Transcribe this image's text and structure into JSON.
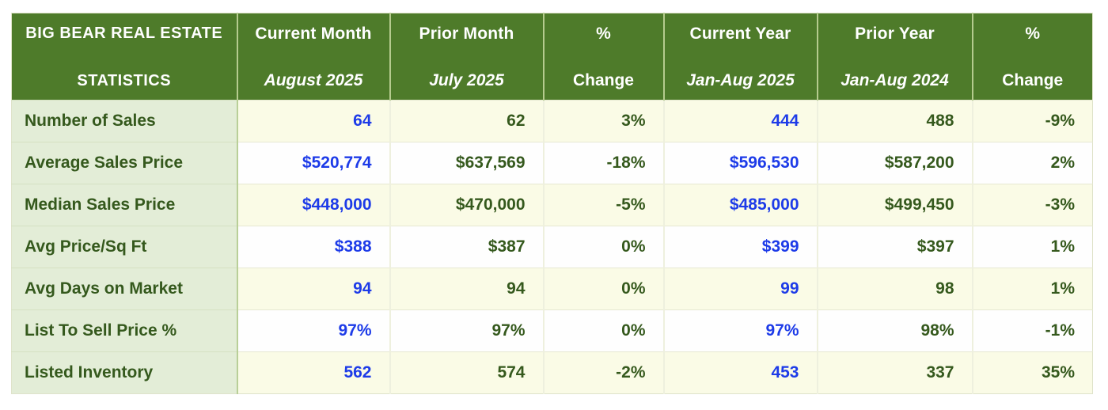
{
  "table": {
    "title_line1": "BIG BEAR REAL ESTATE",
    "title_line2": "STATISTICS",
    "columns": [
      {
        "label": "Current Month",
        "sublabel": "August 2025"
      },
      {
        "label": "Prior Month",
        "sublabel": "July 2025"
      },
      {
        "label": "%",
        "sublabel": "Change"
      },
      {
        "label": "Current Year",
        "sublabel": "Jan-Aug 2025"
      },
      {
        "label": "Prior Year",
        "sublabel": "Jan-Aug 2024"
      },
      {
        "label": "%",
        "sublabel": "Change"
      }
    ],
    "rows": [
      {
        "label": "Number of Sales",
        "values": [
          "64",
          "62",
          "3%",
          "444",
          "488",
          "-9%"
        ]
      },
      {
        "label": "Average Sales Price",
        "values": [
          "$520,774",
          "$637,569",
          "-18%",
          "$596,530",
          "$587,200",
          "2%"
        ]
      },
      {
        "label": "Median Sales Price",
        "values": [
          "$448,000",
          "$470,000",
          "-5%",
          "$485,000",
          "$499,450",
          "-3%"
        ]
      },
      {
        "label": "Avg Price/Sq Ft",
        "values": [
          "$388",
          "$387",
          "0%",
          "$399",
          "$397",
          "1%"
        ]
      },
      {
        "label": "Avg Days on Market",
        "values": [
          "94",
          "94",
          "0%",
          "99",
          "98",
          "1%"
        ]
      },
      {
        "label": "List To Sell Price %",
        "values": [
          "97%",
          "97%",
          "0%",
          "97%",
          "98%",
          "-1%"
        ]
      },
      {
        "label": "Listed Inventory",
        "values": [
          "562",
          "574",
          "-2%",
          "453",
          "337",
          "35%"
        ]
      }
    ],
    "colors": {
      "header_bg": "#4e7b2a",
      "label_column_bg": "#e3edd7",
      "row_cream": "#fafbe6",
      "row_white": "#fefefe",
      "text_green": "#35591d",
      "text_blue": "#1d3be8",
      "header_text": "#ffffff"
    }
  },
  "chart_data": {
    "type": "table",
    "title": "BIG BEAR REAL ESTATE STATISTICS",
    "columns": [
      "Current Month August 2025",
      "Prior Month July 2025",
      "% Change",
      "Current Year Jan-Aug 2025",
      "Prior Year Jan-Aug 2024",
      "% Change"
    ],
    "categories": [
      "Number of Sales",
      "Average Sales Price",
      "Median Sales Price",
      "Avg Price/Sq Ft",
      "Avg Days on Market",
      "List To Sell Price %",
      "Listed Inventory"
    ],
    "series": [
      {
        "name": "Current Month August 2025",
        "values": [
          64,
          520774,
          448000,
          388,
          94,
          "97%",
          562
        ]
      },
      {
        "name": "Prior Month July 2025",
        "values": [
          62,
          637569,
          470000,
          387,
          94,
          "97%",
          574
        ]
      },
      {
        "name": "% Change (month)",
        "values": [
          "3%",
          "-18%",
          "-5%",
          "0%",
          "0%",
          "0%",
          "-2%"
        ]
      },
      {
        "name": "Current Year Jan-Aug 2025",
        "values": [
          444,
          596530,
          485000,
          399,
          99,
          "97%",
          453
        ]
      },
      {
        "name": "Prior Year Jan-Aug 2024",
        "values": [
          488,
          587200,
          499450,
          397,
          98,
          "98%",
          337
        ]
      },
      {
        "name": "% Change (year)",
        "values": [
          "-9%",
          "2%",
          "-3%",
          "1%",
          "1%",
          "-1%",
          "35%"
        ]
      }
    ]
  }
}
